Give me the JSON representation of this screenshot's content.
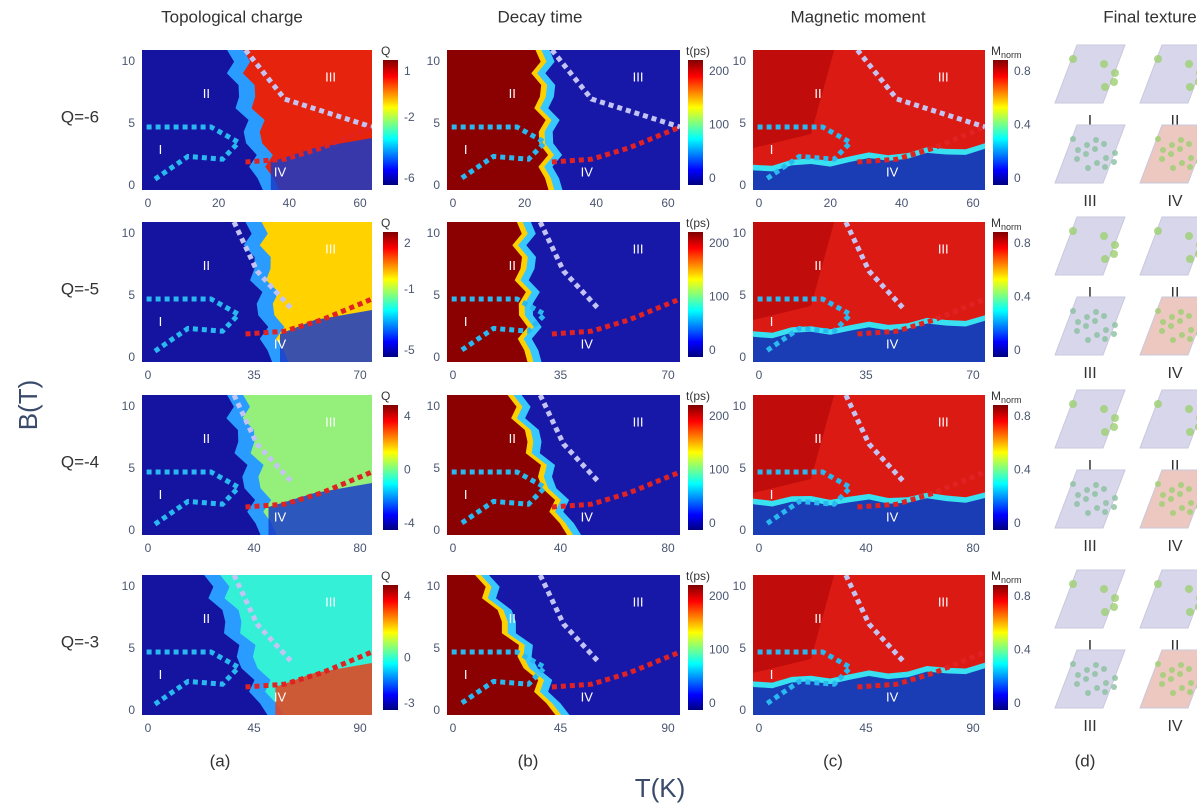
{
  "column_titles": [
    "Topological charge",
    "Decay time",
    "Magnetic moment",
    "Final texture"
  ],
  "row_labels": [
    "Q=-6",
    "Q=-5",
    "Q=-4",
    "Q=-3"
  ],
  "y_axis_label": "B(T)",
  "x_axis_label": "T(K)",
  "panel_labels": [
    "(a)",
    "(b)",
    "(c)",
    "(d)"
  ],
  "region_labels": [
    "I",
    "II",
    "III",
    "IV"
  ],
  "y_ticks": [
    0,
    5,
    10
  ],
  "rows": [
    {
      "x_ticks": [
        0,
        20,
        40,
        60
      ],
      "q_colorbar": {
        "title": "Q",
        "ticks": [
          1,
          -2,
          -6
        ]
      }
    },
    {
      "x_ticks": [
        0,
        35,
        70
      ],
      "q_colorbar": {
        "title": "Q",
        "ticks": [
          2,
          -1,
          -5
        ]
      }
    },
    {
      "x_ticks": [
        0,
        40,
        80
      ],
      "q_colorbar": {
        "title": "Q",
        "ticks": [
          4,
          0,
          -4
        ]
      }
    },
    {
      "x_ticks": [
        0,
        45,
        90
      ],
      "q_colorbar": {
        "title": "Q",
        "ticks": [
          4,
          0,
          -3
        ]
      }
    }
  ],
  "t_colorbar": {
    "title": "t(ps)",
    "ticks": [
      200,
      100,
      0
    ]
  },
  "m_colorbar": {
    "title": "M",
    "subscript": "norm",
    "ticks": [
      0.8,
      0.4,
      0
    ]
  }
}
